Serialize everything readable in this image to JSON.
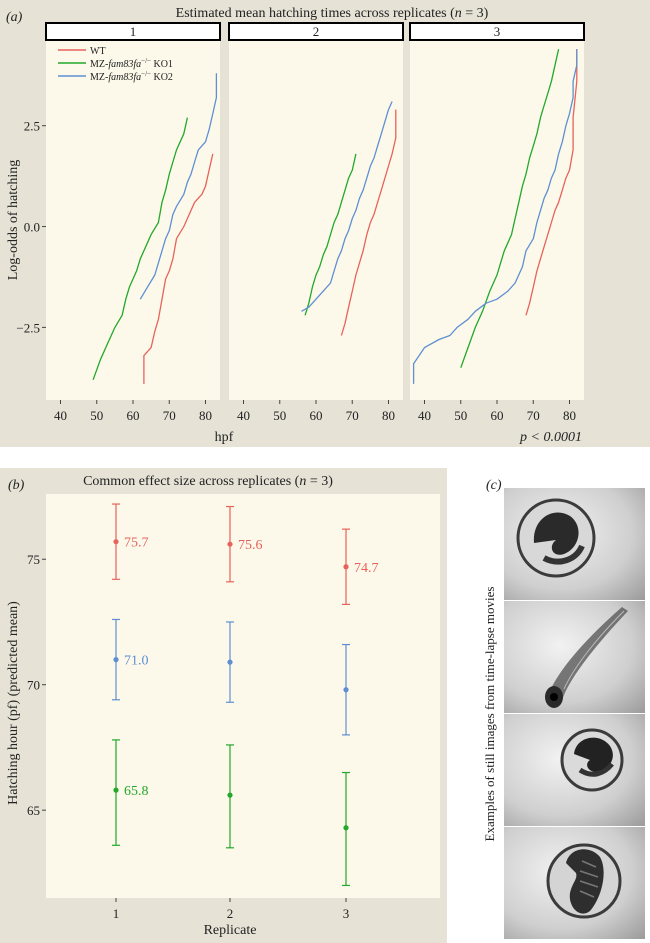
{
  "panel_a": {
    "label": "(a)",
    "title_main": "Estimated mean hatching times across replicates (",
    "title_n": "n",
    "title_eq": " = 3)",
    "legend": [
      {
        "prefix": "WT",
        "italic": "",
        "sup": "",
        "suffix": "",
        "color": "#e8625c"
      },
      {
        "prefix": "MZ-",
        "italic": "fam83fa",
        "sup": "−/−",
        "suffix": " KO1",
        "color": "#22a82a"
      },
      {
        "prefix": "MZ-",
        "italic": "fam83fa",
        "sup": "−/−",
        "suffix": " KO2",
        "color": "#5f8fd2"
      }
    ],
    "xlabel": "hpf",
    "pvalue": "p < 0.0001"
  },
  "panel_b": {
    "label": "(b)",
    "title_main": "Common effect size across replicates (",
    "title_n": "n",
    "title_eq": " = 3)"
  },
  "panel_c": {
    "label": "(c)",
    "side_label": "Examples of still images from time-lapse movies"
  },
  "chart_data": [
    {
      "type": "line",
      "title": "Estimated mean hatching times across replicates (n = 3)",
      "xlabel": "hpf",
      "ylabel": "Log-odds of hatching",
      "xlim": [
        36,
        84
      ],
      "ylim": [
        -4.3,
        4.6
      ],
      "xticks": [
        40,
        50,
        60,
        70,
        80
      ],
      "yticks": [
        -2.5,
        0.0,
        2.5
      ],
      "ytick_labels": [
        "−2.5",
        "0.0",
        "2.5"
      ],
      "facets": [
        {
          "name": "1",
          "series": [
            {
              "name": "WT",
              "color": "#e8625c",
              "points": [
                [
                  63,
                  -3.9
                ],
                [
                  63,
                  -3.2
                ],
                [
                  65,
                  -3.0
                ],
                [
                  66,
                  -2.6
                ],
                [
                  67,
                  -2.3
                ],
                [
                  68,
                  -1.8
                ],
                [
                  69,
                  -1.3
                ],
                [
                  70,
                  -1.1
                ],
                [
                  71,
                  -0.8
                ],
                [
                  72,
                  -0.3
                ],
                [
                  74,
                  0.0
                ],
                [
                  75,
                  0.2
                ],
                [
                  77,
                  0.6
                ],
                [
                  79,
                  0.8
                ],
                [
                  80,
                  1.0
                ],
                [
                  81,
                  1.4
                ],
                [
                  82,
                  1.8
                ]
              ]
            },
            {
              "name": "MZ-fam83fa−/− KO1",
              "color": "#22a82a",
              "points": [
                [
                  49,
                  -3.8
                ],
                [
                  51,
                  -3.3
                ],
                [
                  53,
                  -2.9
                ],
                [
                  55,
                  -2.5
                ],
                [
                  57,
                  -2.2
                ],
                [
                  58,
                  -1.8
                ],
                [
                  59,
                  -1.5
                ],
                [
                  61,
                  -1.1
                ],
                [
                  62,
                  -0.8
                ],
                [
                  64,
                  -0.4
                ],
                [
                  65,
                  -0.2
                ],
                [
                  67,
                  0.1
                ],
                [
                  68,
                  0.6
                ],
                [
                  69,
                  0.9
                ],
                [
                  70,
                  1.3
                ],
                [
                  71,
                  1.6
                ],
                [
                  72,
                  1.9
                ],
                [
                  74,
                  2.3
                ],
                [
                  75,
                  2.7
                ]
              ]
            },
            {
              "name": "MZ-fam83fa−/− KO2",
              "color": "#5f8fd2",
              "points": [
                [
                  62,
                  -1.8
                ],
                [
                  64,
                  -1.5
                ],
                [
                  66,
                  -1.2
                ],
                [
                  67,
                  -0.9
                ],
                [
                  68,
                  -0.6
                ],
                [
                  69,
                  -0.3
                ],
                [
                  70,
                  -0.1
                ],
                [
                  71,
                  0.3
                ],
                [
                  72,
                  0.5
                ],
                [
                  74,
                  0.8
                ],
                [
                  75,
                  1.1
                ],
                [
                  76,
                  1.3
                ],
                [
                  77,
                  1.6
                ],
                [
                  78,
                  1.9
                ],
                [
                  80,
                  2.1
                ],
                [
                  81,
                  2.4
                ],
                [
                  82,
                  2.8
                ],
                [
                  83,
                  3.2
                ],
                [
                  83,
                  3.8
                ]
              ]
            }
          ]
        },
        {
          "name": "2",
          "series": [
            {
              "name": "WT",
              "color": "#e8625c",
              "points": [
                [
                  67,
                  -2.7
                ],
                [
                  68,
                  -2.4
                ],
                [
                  69,
                  -2.0
                ],
                [
                  70,
                  -1.6
                ],
                [
                  71,
                  -1.2
                ],
                [
                  72,
                  -0.9
                ],
                [
                  73,
                  -0.6
                ],
                [
                  74,
                  -0.2
                ],
                [
                  75,
                  0.1
                ],
                [
                  76,
                  0.3
                ],
                [
                  77,
                  0.6
                ],
                [
                  78,
                  0.9
                ],
                [
                  79,
                  1.2
                ],
                [
                  80,
                  1.5
                ],
                [
                  81,
                  1.8
                ],
                [
                  82,
                  2.2
                ],
                [
                  82,
                  2.9
                ]
              ]
            },
            {
              "name": "MZ-fam83fa−/− KO1",
              "color": "#22a82a",
              "points": [
                [
                  57,
                  -2.2
                ],
                [
                  58,
                  -1.9
                ],
                [
                  59,
                  -1.5
                ],
                [
                  60,
                  -1.2
                ],
                [
                  61,
                  -1.0
                ],
                [
                  62,
                  -0.7
                ],
                [
                  63,
                  -0.5
                ],
                [
                  64,
                  -0.2
                ],
                [
                  65,
                  0.1
                ],
                [
                  66,
                  0.3
                ],
                [
                  67,
                  0.6
                ],
                [
                  68,
                  0.9
                ],
                [
                  69,
                  1.2
                ],
                [
                  70,
                  1.4
                ],
                [
                  71,
                  1.8
                ]
              ]
            },
            {
              "name": "MZ-fam83fa−/− KO2",
              "color": "#5f8fd2",
              "points": [
                [
                  56,
                  -2.1
                ],
                [
                  58,
                  -2.0
                ],
                [
                  60,
                  -1.8
                ],
                [
                  62,
                  -1.6
                ],
                [
                  64,
                  -1.4
                ],
                [
                  65,
                  -1.1
                ],
                [
                  66,
                  -0.8
                ],
                [
                  67,
                  -0.6
                ],
                [
                  68,
                  -0.3
                ],
                [
                  69,
                  -0.1
                ],
                [
                  70,
                  0.2
                ],
                [
                  71,
                  0.4
                ],
                [
                  72,
                  0.7
                ],
                [
                  73,
                  0.9
                ],
                [
                  74,
                  1.2
                ],
                [
                  75,
                  1.5
                ],
                [
                  76,
                  1.7
                ],
                [
                  77,
                  2.0
                ],
                [
                  78,
                  2.3
                ],
                [
                  79,
                  2.6
                ],
                [
                  80,
                  2.9
                ],
                [
                  81,
                  3.1
                ]
              ]
            }
          ]
        },
        {
          "name": "3",
          "series": [
            {
              "name": "WT",
              "color": "#e8625c",
              "points": [
                [
                  68,
                  -2.2
                ],
                [
                  69,
                  -1.9
                ],
                [
                  70,
                  -1.5
                ],
                [
                  71,
                  -1.1
                ],
                [
                  72,
                  -0.8
                ],
                [
                  73,
                  -0.5
                ],
                [
                  74,
                  -0.2
                ],
                [
                  75,
                  0.1
                ],
                [
                  76,
                  0.4
                ],
                [
                  77,
                  0.6
                ],
                [
                  78,
                  0.9
                ],
                [
                  79,
                  1.2
                ],
                [
                  80,
                  1.4
                ],
                [
                  81,
                  1.9
                ],
                [
                  81,
                  2.7
                ],
                [
                  82,
                  3.6
                ],
                [
                  82,
                  4.4
                ]
              ]
            },
            {
              "name": "MZ-fam83fa−/− KO1",
              "color": "#22a82a",
              "points": [
                [
                  50,
                  -3.5
                ],
                [
                  52,
                  -3.0
                ],
                [
                  54,
                  -2.5
                ],
                [
                  56,
                  -2.1
                ],
                [
                  58,
                  -1.6
                ],
                [
                  60,
                  -1.2
                ],
                [
                  61,
                  -0.9
                ],
                [
                  62,
                  -0.6
                ],
                [
                  64,
                  -0.2
                ],
                [
                  65,
                  0.2
                ],
                [
                  66,
                  0.6
                ],
                [
                  67,
                  1.0
                ],
                [
                  68,
                  1.3
                ],
                [
                  69,
                  1.7
                ],
                [
                  70,
                  2.0
                ],
                [
                  71,
                  2.3
                ],
                [
                  72,
                  2.7
                ],
                [
                  73,
                  3.0
                ],
                [
                  74,
                  3.3
                ],
                [
                  75,
                  3.6
                ],
                [
                  76,
                  4.0
                ],
                [
                  77,
                  4.4
                ]
              ]
            },
            {
              "name": "MZ-fam83fa−/− KO2",
              "color": "#5f8fd2",
              "points": [
                [
                  37,
                  -3.9
                ],
                [
                  37,
                  -3.4
                ],
                [
                  40,
                  -3.0
                ],
                [
                  44,
                  -2.8
                ],
                [
                  47,
                  -2.7
                ],
                [
                  49,
                  -2.5
                ],
                [
                  52,
                  -2.3
                ],
                [
                  54,
                  -2.1
                ],
                [
                  57,
                  -1.9
                ],
                [
                  60,
                  -1.8
                ],
                [
                  63,
                  -1.6
                ],
                [
                  65,
                  -1.4
                ],
                [
                  67,
                  -1.0
                ],
                [
                  68,
                  -0.6
                ],
                [
                  70,
                  -0.3
                ],
                [
                  71,
                  0.1
                ],
                [
                  72,
                  0.4
                ],
                [
                  73,
                  0.7
                ],
                [
                  74,
                  0.9
                ],
                [
                  75,
                  1.2
                ],
                [
                  76,
                  1.4
                ],
                [
                  77,
                  1.8
                ],
                [
                  78,
                  2.1
                ],
                [
                  79,
                  2.5
                ],
                [
                  80,
                  2.8
                ],
                [
                  81,
                  3.2
                ],
                [
                  81,
                  3.6
                ],
                [
                  82,
                  4.0
                ],
                [
                  82,
                  4.4
                ]
              ]
            }
          ]
        }
      ]
    },
    {
      "type": "scatter",
      "title": "Common effect size across replicates (n = 3)",
      "xlabel": "Replicate",
      "ylabel": "Hatching hour (pf) (predicted mean)",
      "categories": [
        "1",
        "2",
        "3"
      ],
      "ylim": [
        61.5,
        77.6
      ],
      "yticks": [
        65,
        70,
        75
      ],
      "series": [
        {
          "name": "WT",
          "color": "#e8625c",
          "values": [
            75.7,
            75.6,
            74.7
          ],
          "lower": [
            74.2,
            74.1,
            73.2
          ],
          "upper": [
            77.2,
            77.1,
            76.2
          ],
          "labels": [
            "75.7",
            "75.6",
            "74.7"
          ]
        },
        {
          "name": "MZ-fam83fa−/− KO2",
          "color": "#5f8fd2",
          "values": [
            71.0,
            70.9,
            69.8
          ],
          "lower": [
            69.4,
            69.3,
            68.0
          ],
          "upper": [
            72.6,
            72.5,
            71.6
          ],
          "labels": [
            "71.0",
            "",
            ""
          ]
        },
        {
          "name": "MZ-fam83fa−/− KO1",
          "color": "#22a82a",
          "values": [
            65.8,
            65.6,
            64.3
          ],
          "lower": [
            63.6,
            63.5,
            62.0
          ],
          "upper": [
            67.8,
            67.6,
            66.5
          ],
          "labels": [
            "65.8",
            "",
            ""
          ]
        }
      ]
    }
  ]
}
